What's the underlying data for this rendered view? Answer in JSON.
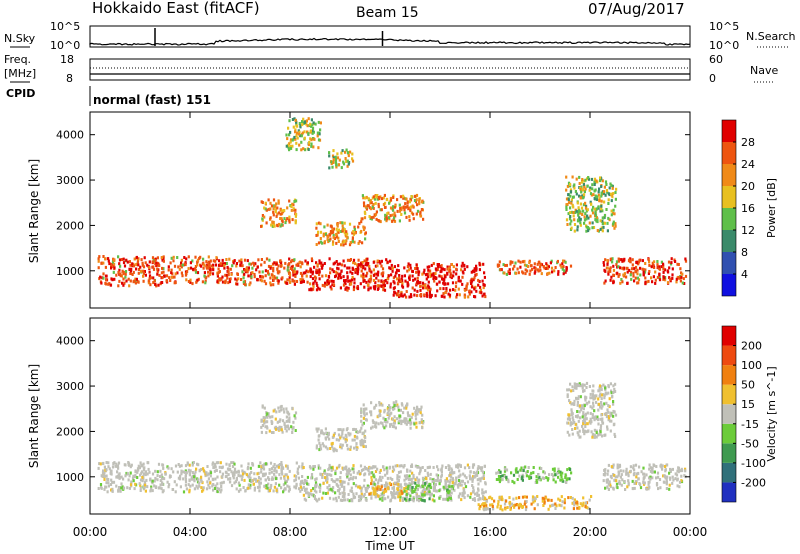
{
  "header": {
    "station": "Hokkaido East (fitACF)",
    "beam": "Beam 15",
    "date": "07/Aug/2017"
  },
  "side_labels": {
    "nsky": "N.Sky",
    "freq": "Freq.",
    "freq_unit": "[MHz]",
    "cpid": "CPID",
    "nsearch": "N.Search",
    "nave": "Nave"
  },
  "cpid_text": "normal (fast) 151",
  "time_axis": {
    "label": "Time UT",
    "ticks": [
      "00:00",
      "04:00",
      "08:00",
      "12:00",
      "16:00",
      "20:00",
      "00:00"
    ]
  },
  "chart_data": [
    {
      "type": "line",
      "name": "noise",
      "yticks_left": [
        "10^5",
        "10^0"
      ],
      "yticks_right": [
        "10^5",
        "10^0"
      ]
    },
    {
      "type": "line",
      "name": "frequency",
      "yticks_left": [
        "18",
        "8"
      ],
      "yticks_right": [
        "60",
        "0"
      ]
    },
    {
      "type": "heatmap",
      "name": "power",
      "ylabel": "Slant Range [km]",
      "yticks": [
        "1000",
        "2000",
        "3000",
        "4000"
      ],
      "ylim": [
        180,
        4500
      ],
      "xlim": [
        0,
        24
      ],
      "colorbar": {
        "label": "Power [dB]",
        "ticks": [
          "4",
          "8",
          "12",
          "16",
          "20",
          "24",
          "28"
        ],
        "colors": [
          "#1010e0",
          "#3050b0",
          "#3a8a6a",
          "#5fbf4a",
          "#e8c020",
          "#f08a18",
          "#ee5510",
          "#e00000"
        ]
      },
      "regions": [
        {
          "t0": 0.3,
          "t1": 2.8,
          "r0": 700,
          "r1": 1350,
          "level": "high"
        },
        {
          "t0": 2.8,
          "t1": 5.5,
          "r0": 750,
          "r1": 1350,
          "level": "high"
        },
        {
          "t0": 5.5,
          "t1": 8.5,
          "r0": 720,
          "r1": 1300,
          "level": "high"
        },
        {
          "t0": 8.5,
          "t1": 12,
          "r0": 600,
          "r1": 1300,
          "level": "max"
        },
        {
          "t0": 12,
          "t1": 15.8,
          "r0": 450,
          "r1": 1200,
          "level": "max"
        },
        {
          "t0": 16.2,
          "t1": 19.2,
          "r0": 950,
          "r1": 1250,
          "level": "high"
        },
        {
          "t0": 20.5,
          "t1": 23.8,
          "r0": 750,
          "r1": 1300,
          "level": "high"
        },
        {
          "t0": 6.8,
          "t1": 8.2,
          "r0": 2000,
          "r1": 2600,
          "level": "mid"
        },
        {
          "t0": 9.0,
          "t1": 11.0,
          "r0": 1600,
          "r1": 2100,
          "level": "mid"
        },
        {
          "t0": 10.8,
          "t1": 13.3,
          "r0": 2100,
          "r1": 2700,
          "level": "mid"
        },
        {
          "t0": 19.0,
          "t1": 21.0,
          "r0": 1900,
          "r1": 3100,
          "level": "low"
        },
        {
          "t0": 9.5,
          "t1": 10.5,
          "r0": 3300,
          "r1": 3700,
          "level": "low"
        },
        {
          "t0": 7.8,
          "t1": 9.2,
          "r0": 3700,
          "r1": 4400,
          "level": "low"
        }
      ]
    },
    {
      "type": "heatmap",
      "name": "velocity",
      "ylabel": "Slant Range [km]",
      "yticks": [
        "1000",
        "2000",
        "3000",
        "4000"
      ],
      "ylim": [
        180,
        4500
      ],
      "xlim": [
        0,
        24
      ],
      "colorbar": {
        "label": "Velocity [m s^-1]",
        "ticks": [
          "200",
          "100",
          "50",
          "15",
          "-15",
          "-50",
          "-100",
          "-200"
        ],
        "colors": [
          "#2030c0",
          "#30707a",
          "#3f9a50",
          "#6ccc3a",
          "#c0c0b8",
          "#f0c030",
          "#f08010",
          "#ee4a10",
          "#e00000"
        ]
      },
      "regions": [
        {
          "t0": 0.3,
          "t1": 8.5,
          "r0": 700,
          "r1": 1350,
          "level": "grey"
        },
        {
          "t0": 8.5,
          "t1": 15.8,
          "r0": 500,
          "r1": 1300,
          "level": "grey"
        },
        {
          "t0": 16.2,
          "t1": 19.2,
          "r0": 900,
          "r1": 1250,
          "level": "green"
        },
        {
          "t0": 20.5,
          "t1": 23.8,
          "r0": 750,
          "r1": 1300,
          "level": "grey"
        },
        {
          "t0": 6.8,
          "t1": 8.2,
          "r0": 2000,
          "r1": 2600,
          "level": "grey"
        },
        {
          "t0": 9.0,
          "t1": 11.0,
          "r0": 1600,
          "r1": 2100,
          "level": "grey"
        },
        {
          "t0": 10.8,
          "t1": 13.3,
          "r0": 2100,
          "r1": 2700,
          "level": "grey"
        },
        {
          "t0": 19.0,
          "t1": 21.0,
          "r0": 1900,
          "r1": 3100,
          "level": "grey"
        },
        {
          "t0": 11.0,
          "t1": 12.5,
          "r0": 600,
          "r1": 900,
          "level": "orange"
        },
        {
          "t0": 12.5,
          "t1": 14.5,
          "r0": 500,
          "r1": 900,
          "level": "green"
        },
        {
          "t0": 15.5,
          "t1": 20,
          "r0": 300,
          "r1": 600,
          "level": "orange"
        }
      ]
    }
  ]
}
